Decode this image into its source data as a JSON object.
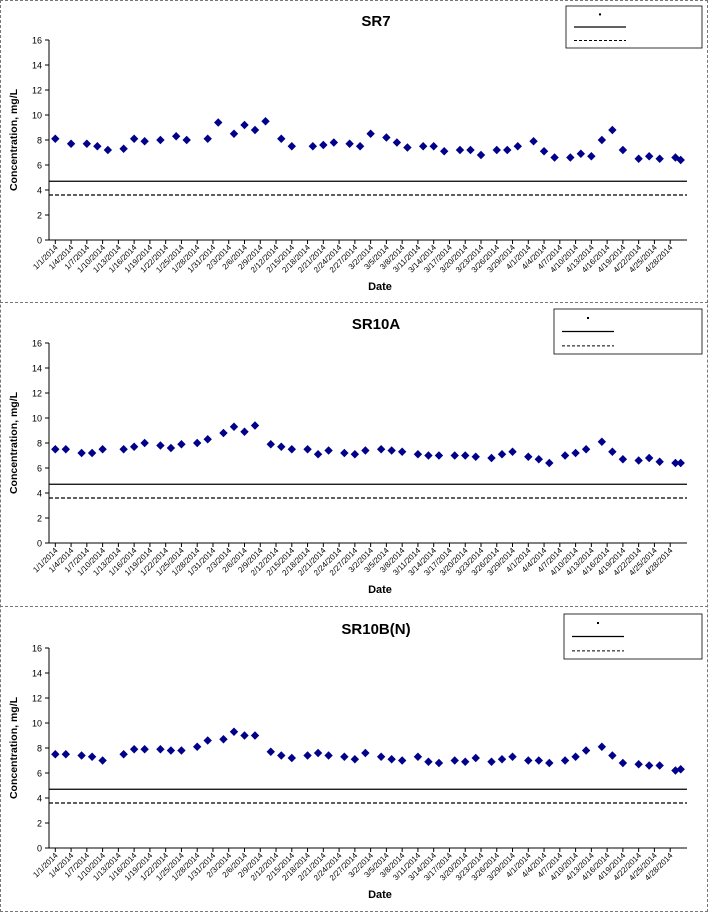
{
  "axis_labels": {
    "x": "Date",
    "y": "Concentration, mg/L"
  },
  "chart_data": [
    {
      "type": "scatter",
      "title": "SR7",
      "xlabel": "Date",
      "ylabel": "Concentration, mg/L",
      "ylim": [
        0,
        16
      ],
      "yticks": [
        0,
        2,
        4,
        6,
        8,
        10,
        12,
        14,
        16
      ],
      "xlim": [
        "2014-01-01",
        "2014-04-30"
      ],
      "x_tick_labels": [
        "1/1/2014",
        "1/4/2014",
        "1/7/2014",
        "1/10/2014",
        "1/13/2014",
        "1/16/2014",
        "1/19/2014",
        "1/22/2014",
        "1/25/2014",
        "1/28/2014",
        "1/31/2014",
        "2/3/2014",
        "2/6/2014",
        "2/9/2014",
        "2/12/2014",
        "2/15/2014",
        "2/18/2014",
        "2/21/2014",
        "2/24/2014",
        "2/27/2014",
        "3/2/2014",
        "3/5/2014",
        "3/8/2014",
        "3/11/2014",
        "3/14/2014",
        "3/17/2014",
        "3/20/2014",
        "3/23/2014",
        "3/26/2014",
        "3/29/2014",
        "4/1/2014",
        "4/4/2014",
        "4/7/2014",
        "4/10/2014",
        "4/13/2014",
        "4/16/2014",
        "4/19/2014",
        "4/22/2014",
        "4/25/2014",
        "4/28/2014"
      ],
      "legend_placement": "top-right",
      "series": [
        {
          "kind": "points",
          "color": "#00008B",
          "x": [
            "2014-01-01",
            "2014-01-04",
            "2014-01-07",
            "2014-01-09",
            "2014-01-11",
            "2014-01-14",
            "2014-01-16",
            "2014-01-18",
            "2014-01-21",
            "2014-01-24",
            "2014-01-26",
            "2014-01-30",
            "2014-02-01",
            "2014-02-04",
            "2014-02-06",
            "2014-02-08",
            "2014-02-10",
            "2014-02-13",
            "2014-02-15",
            "2014-02-19",
            "2014-02-21",
            "2014-02-23",
            "2014-02-26",
            "2014-02-28",
            "2014-03-02",
            "2014-03-05",
            "2014-03-07",
            "2014-03-09",
            "2014-03-12",
            "2014-03-14",
            "2014-03-16",
            "2014-03-19",
            "2014-03-21",
            "2014-03-23",
            "2014-03-26",
            "2014-03-28",
            "2014-03-30",
            "2014-04-02",
            "2014-04-04",
            "2014-04-06",
            "2014-04-09",
            "2014-04-11",
            "2014-04-13",
            "2014-04-15",
            "2014-04-17",
            "2014-04-19",
            "2014-04-22",
            "2014-04-24",
            "2014-04-26",
            "2014-04-29",
            "2014-04-30"
          ],
          "y": [
            8.1,
            7.7,
            7.7,
            7.5,
            7.2,
            7.3,
            8.1,
            7.9,
            8.0,
            8.3,
            8.0,
            8.1,
            9.4,
            8.5,
            9.2,
            8.8,
            9.5,
            8.1,
            7.5,
            7.5,
            7.6,
            7.8,
            7.7,
            7.5,
            8.5,
            8.2,
            7.8,
            7.4,
            7.5,
            7.5,
            7.1,
            7.2,
            7.2,
            6.8,
            7.2,
            7.2,
            7.5,
            7.9,
            7.1,
            6.6,
            6.6,
            6.9,
            6.7,
            8.0,
            8.8,
            7.2,
            6.5,
            6.7,
            6.5,
            6.6,
            6.4
          ]
        },
        {
          "kind": "hline",
          "style": "solid",
          "color": "#000000",
          "y": 4.7
        },
        {
          "kind": "hline",
          "style": "dashed",
          "color": "#000000",
          "y": 3.6
        }
      ]
    },
    {
      "type": "scatter",
      "title": "SR10A",
      "xlabel": "Date",
      "ylabel": "Concentration, mg/L",
      "ylim": [
        0,
        16
      ],
      "yticks": [
        0,
        2,
        4,
        6,
        8,
        10,
        12,
        14,
        16
      ],
      "xlim": [
        "2014-01-01",
        "2014-04-30"
      ],
      "x_tick_labels": [
        "1/1/2014",
        "1/4/2014",
        "1/7/2014",
        "1/10/2014",
        "1/13/2014",
        "1/16/2014",
        "1/19/2014",
        "1/22/2014",
        "1/25/2014",
        "1/28/2014",
        "1/31/2014",
        "2/3/2014",
        "2/6/2014",
        "2/9/2014",
        "2/12/2014",
        "2/15/2014",
        "2/18/2014",
        "2/21/2014",
        "2/24/2014",
        "2/27/2014",
        "3/2/2014",
        "3/5/2014",
        "3/8/2014",
        "3/11/2014",
        "3/14/2014",
        "3/17/2014",
        "3/20/2014",
        "3/23/2014",
        "3/26/2014",
        "3/29/2014",
        "4/1/2014",
        "4/4/2014",
        "4/7/2014",
        "4/10/2014",
        "4/13/2014",
        "4/16/2014",
        "4/19/2014",
        "4/22/2014",
        "4/25/2014",
        "4/28/2014"
      ],
      "legend_placement": "top-right",
      "series": [
        {
          "kind": "points",
          "color": "#00008B",
          "x": [
            "2014-01-01",
            "2014-01-03",
            "2014-01-06",
            "2014-01-08",
            "2014-01-10",
            "2014-01-14",
            "2014-01-16",
            "2014-01-18",
            "2014-01-21",
            "2014-01-23",
            "2014-01-25",
            "2014-01-28",
            "2014-01-30",
            "2014-02-02",
            "2014-02-04",
            "2014-02-06",
            "2014-02-08",
            "2014-02-11",
            "2014-02-13",
            "2014-02-15",
            "2014-02-18",
            "2014-02-20",
            "2014-02-22",
            "2014-02-25",
            "2014-02-27",
            "2014-03-01",
            "2014-03-04",
            "2014-03-06",
            "2014-03-08",
            "2014-03-11",
            "2014-03-13",
            "2014-03-15",
            "2014-03-18",
            "2014-03-20",
            "2014-03-22",
            "2014-03-25",
            "2014-03-27",
            "2014-03-29",
            "2014-04-01",
            "2014-04-03",
            "2014-04-05",
            "2014-04-08",
            "2014-04-10",
            "2014-04-12",
            "2014-04-15",
            "2014-04-17",
            "2014-04-19",
            "2014-04-22",
            "2014-04-24",
            "2014-04-26",
            "2014-04-29",
            "2014-04-30"
          ],
          "y": [
            7.5,
            7.5,
            7.2,
            7.2,
            7.5,
            7.5,
            7.7,
            8.0,
            7.8,
            7.6,
            7.9,
            8.0,
            8.3,
            8.8,
            9.3,
            8.9,
            9.4,
            7.9,
            7.7,
            7.5,
            7.5,
            7.1,
            7.4,
            7.2,
            7.1,
            7.4,
            7.5,
            7.4,
            7.3,
            7.1,
            7.0,
            7.0,
            7.0,
            7.0,
            6.9,
            6.8,
            7.1,
            7.3,
            6.9,
            6.7,
            6.4,
            7.0,
            7.2,
            7.5,
            8.1,
            7.3,
            6.7,
            6.6,
            6.8,
            6.5,
            6.4,
            6.4
          ]
        },
        {
          "kind": "hline",
          "style": "solid",
          "color": "#000000",
          "y": 4.7
        },
        {
          "kind": "hline",
          "style": "dashed",
          "color": "#000000",
          "y": 3.6
        }
      ]
    },
    {
      "type": "scatter",
      "title": "SR10B(N)",
      "xlabel": "Date",
      "ylabel": "Concentration, mg/L",
      "ylim": [
        0,
        16
      ],
      "yticks": [
        0,
        2,
        4,
        6,
        8,
        10,
        12,
        14,
        16
      ],
      "xlim": [
        "2014-01-01",
        "2014-04-30"
      ],
      "x_tick_labels": [
        "1/1/2014",
        "1/4/2014",
        "1/7/2014",
        "1/10/2014",
        "1/13/2014",
        "1/16/2014",
        "1/19/2014",
        "1/22/2014",
        "1/25/2014",
        "1/28/2014",
        "1/31/2014",
        "2/3/2014",
        "2/6/2014",
        "2/9/2014",
        "2/12/2014",
        "2/15/2014",
        "2/18/2014",
        "2/21/2014",
        "2/24/2014",
        "2/27/2014",
        "3/2/2014",
        "3/5/2014",
        "3/8/2014",
        "3/11/2014",
        "3/14/2014",
        "3/17/2014",
        "3/20/2014",
        "3/23/2014",
        "3/26/2014",
        "3/29/2014",
        "4/1/2014",
        "4/4/2014",
        "4/7/2014",
        "4/10/2014",
        "4/13/2014",
        "4/16/2014",
        "4/19/2014",
        "4/22/2014",
        "4/25/2014",
        "4/28/2014"
      ],
      "legend_placement": "top-right",
      "series": [
        {
          "kind": "points",
          "color": "#00008B",
          "x": [
            "2014-01-01",
            "2014-01-03",
            "2014-01-06",
            "2014-01-08",
            "2014-01-10",
            "2014-01-14",
            "2014-01-16",
            "2014-01-18",
            "2014-01-21",
            "2014-01-23",
            "2014-01-25",
            "2014-01-28",
            "2014-01-30",
            "2014-02-02",
            "2014-02-04",
            "2014-02-06",
            "2014-02-08",
            "2014-02-11",
            "2014-02-13",
            "2014-02-15",
            "2014-02-18",
            "2014-02-20",
            "2014-02-22",
            "2014-02-25",
            "2014-02-27",
            "2014-03-01",
            "2014-03-04",
            "2014-03-06",
            "2014-03-08",
            "2014-03-11",
            "2014-03-13",
            "2014-03-15",
            "2014-03-18",
            "2014-03-20",
            "2014-03-22",
            "2014-03-25",
            "2014-03-27",
            "2014-03-29",
            "2014-04-01",
            "2014-04-03",
            "2014-04-05",
            "2014-04-08",
            "2014-04-10",
            "2014-04-12",
            "2014-04-15",
            "2014-04-17",
            "2014-04-19",
            "2014-04-22",
            "2014-04-24",
            "2014-04-26",
            "2014-04-29",
            "2014-04-30"
          ],
          "y": [
            7.5,
            7.5,
            7.4,
            7.3,
            7.0,
            7.5,
            7.9,
            7.9,
            7.9,
            7.8,
            7.8,
            8.1,
            8.6,
            8.7,
            9.3,
            9.0,
            9.0,
            7.7,
            7.4,
            7.2,
            7.4,
            7.6,
            7.4,
            7.3,
            7.1,
            7.6,
            7.3,
            7.1,
            7.0,
            7.3,
            6.9,
            6.8,
            7.0,
            6.9,
            7.2,
            6.9,
            7.1,
            7.3,
            7.0,
            7.0,
            6.8,
            7.0,
            7.3,
            7.8,
            8.1,
            7.4,
            6.8,
            6.7,
            6.6,
            6.6,
            6.2,
            6.3
          ]
        },
        {
          "kind": "hline",
          "style": "solid",
          "color": "#000000",
          "y": 4.7
        },
        {
          "kind": "hline",
          "style": "dashed",
          "color": "#000000",
          "y": 3.6
        }
      ]
    }
  ]
}
